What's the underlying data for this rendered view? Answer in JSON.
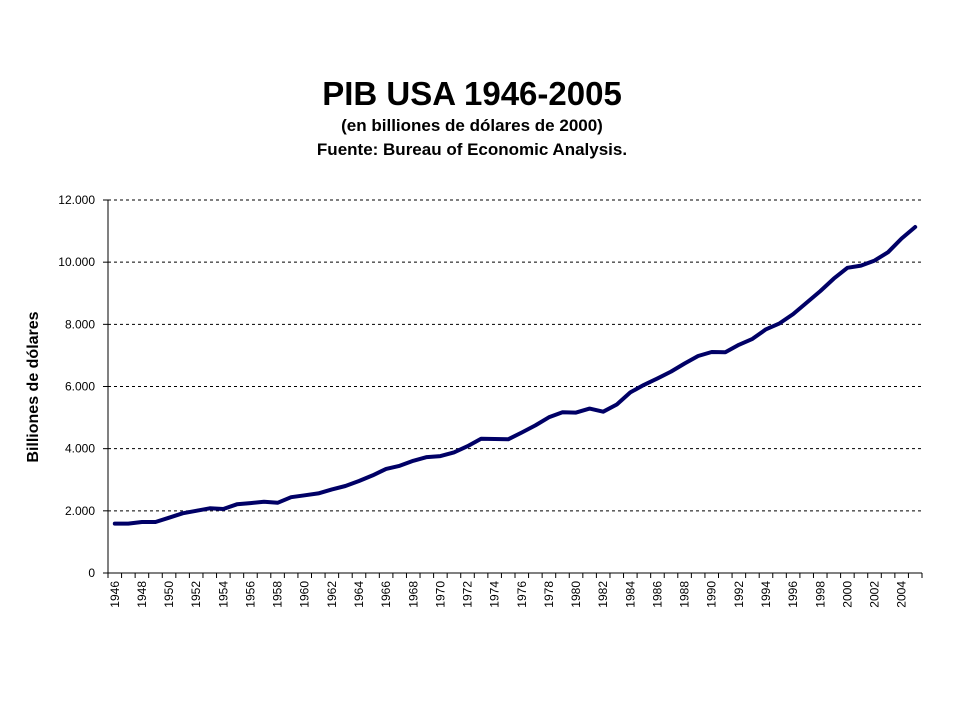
{
  "chart_data": {
    "type": "line",
    "title": "PIB USA 1946-2005",
    "subtitle": "(en billiones de dólares de 2000)",
    "source": "Fuente: Bureau of Economic Analysis.",
    "xlabel": "",
    "ylabel": "Billiones de dólares",
    "ylim": [
      0,
      12000
    ],
    "yticks": [
      "0",
      "2.000",
      "4.000",
      "6.000",
      "8.000",
      "10.000",
      "12.000"
    ],
    "ytick_values": [
      0,
      2000,
      4000,
      6000,
      8000,
      10000,
      12000
    ],
    "xtick_labels": [
      "1946",
      "1948",
      "1950",
      "1952",
      "1954",
      "1956",
      "1958",
      "1960",
      "1962",
      "1964",
      "1966",
      "1968",
      "1970",
      "1972",
      "1974",
      "1976",
      "1978",
      "1980",
      "1982",
      "1984",
      "1986",
      "1988",
      "1990",
      "1992",
      "1994",
      "1996",
      "1998",
      "2000",
      "2002",
      "2004"
    ],
    "grid": "horizontal dashed",
    "legend": "none",
    "line_color": "#000066",
    "series": [
      {
        "x": [
          1946,
          1947,
          1948,
          1949,
          1950,
          1951,
          1952,
          1953,
          1954,
          1955,
          1956,
          1957,
          1958,
          1959,
          1960,
          1961,
          1962,
          1963,
          1964,
          1965,
          1966,
          1967,
          1968,
          1969,
          1970,
          1971,
          1972,
          1973,
          1974,
          1975,
          1976,
          1977,
          1978,
          1979,
          1980,
          1981,
          1982,
          1983,
          1984,
          1985,
          1986,
          1987,
          1988,
          1989,
          1990,
          1991,
          1992,
          1993,
          1994,
          1995,
          1996,
          1997,
          1998,
          1999,
          2000,
          2001,
          2002,
          2003,
          2004,
          2005
        ],
        "values": [
          1590,
          1590,
          1640,
          1640,
          1780,
          1920,
          2000,
          2080,
          2060,
          2210,
          2250,
          2290,
          2260,
          2440,
          2500,
          2560,
          2690,
          2800,
          2960,
          3140,
          3350,
          3450,
          3610,
          3730,
          3760,
          3880,
          4080,
          4320,
          4310,
          4300,
          4520,
          4750,
          5010,
          5170,
          5160,
          5290,
          5190,
          5420,
          5810,
          6050,
          6260,
          6480,
          6740,
          6980,
          7110,
          7100,
          7340,
          7530,
          7840,
          8030,
          8330,
          8700,
          9070,
          9470,
          9820,
          9890,
          10050,
          10320,
          10760,
          11130
        ]
      }
    ]
  }
}
